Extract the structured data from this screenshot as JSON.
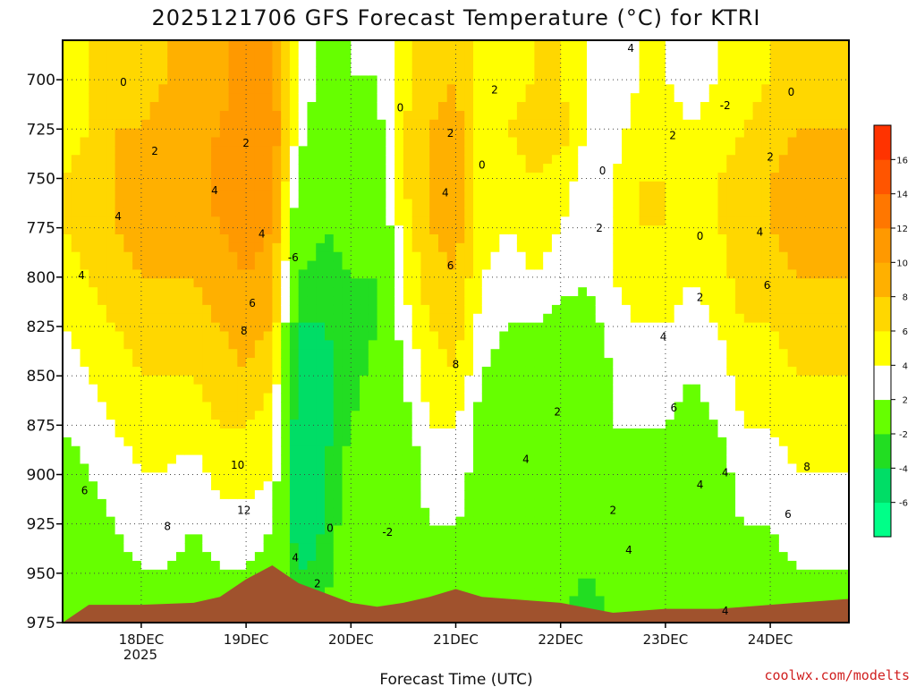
{
  "chart_data": {
    "type": "heatmap",
    "title": "2025121706 GFS Forecast Temperature (°C) for KTRI",
    "xlabel": "Forecast Time (UTC)",
    "ylabel": "",
    "credit": "coolwx.com/modelts",
    "y_axis": {
      "ticks": [
        700,
        725,
        750,
        775,
        800,
        825,
        850,
        875,
        900,
        925,
        950,
        975
      ],
      "range": [
        975,
        680
      ]
    },
    "x_axis": {
      "ticks": [
        "18DEC",
        "19DEC",
        "20DEC",
        "21DEC",
        "22DEC",
        "23DEC",
        "24DEC"
      ],
      "year_label": "2025",
      "range_days": [
        17.25,
        24.75
      ]
    },
    "colorbar": {
      "levels": [
        -8,
        -6,
        -4,
        -2,
        2,
        4,
        6,
        8,
        10,
        12,
        14,
        16,
        18
      ],
      "tick_labels": [
        "-6",
        "-4",
        "-2",
        "2",
        "4",
        "6",
        "8",
        "10",
        "12",
        "14",
        "16"
      ],
      "colors": [
        "#00ff88",
        "#00dd66",
        "#22dd22",
        "#66ff00",
        "#ffffff",
        "#ffff00",
        "#ffd700",
        "#ffb000",
        "#ff9900",
        "#ff7700",
        "#ff5500",
        "#ff3300"
      ]
    },
    "columns": [
      {
        "t": 17.25,
        "z": [
          4,
          5,
          6,
          6,
          5,
          4,
          3,
          2,
          1,
          0,
          -1,
          -1
        ]
      },
      {
        "t": 17.5,
        "z": [
          6,
          6,
          7,
          7,
          6,
          5,
          4,
          3,
          2,
          1,
          0,
          0
        ]
      },
      {
        "t": 17.75,
        "z": [
          7,
          8,
          8,
          8,
          7,
          6,
          5,
          4,
          3,
          2,
          1,
          0
        ]
      },
      {
        "t": 18.0,
        "z": [
          7,
          8,
          9,
          9,
          8,
          7,
          6,
          5,
          4,
          3,
          2,
          1
        ]
      },
      {
        "t": 18.25,
        "z": [
          8,
          9,
          9,
          9,
          8,
          7,
          6,
          5,
          4,
          3,
          2,
          1
        ]
      },
      {
        "t": 18.5,
        "z": [
          8,
          9,
          9,
          9,
          8,
          7,
          6,
          5,
          3,
          2,
          1,
          0
        ]
      },
      {
        "t": 18.75,
        "z": [
          9,
          10,
          11,
          10,
          9,
          8,
          7,
          6,
          5,
          3,
          2,
          1
        ]
      },
      {
        "t": 19.0,
        "z": [
          11,
          12,
          12,
          11,
          10,
          9,
          8,
          6,
          5,
          3,
          2,
          1
        ]
      },
      {
        "t": 19.25,
        "z": [
          10,
          12,
          11,
          10,
          9,
          8,
          6,
          5,
          4,
          2,
          1,
          0
        ]
      },
      {
        "t": 19.5,
        "z": [
          4,
          3,
          1,
          0,
          -2,
          -4,
          -5,
          -6,
          -6,
          -6,
          -4,
          -2
        ]
      },
      {
        "t": 19.75,
        "z": [
          1,
          0,
          -1,
          -2,
          -3,
          -4,
          -5,
          -5,
          -4,
          -4,
          -3,
          -1
        ]
      },
      {
        "t": 20.0,
        "z": [
          2,
          1,
          0,
          -1,
          -2,
          -3,
          -3,
          -2,
          -1,
          0,
          0,
          0
        ]
      },
      {
        "t": 20.25,
        "z": [
          2,
          1,
          0,
          -1,
          -2,
          -2,
          -1,
          0,
          0,
          0,
          0,
          0
        ]
      },
      {
        "t": 20.5,
        "z": [
          5,
          6,
          6,
          5,
          4,
          3,
          2,
          1,
          0,
          0,
          0,
          0
        ]
      },
      {
        "t": 20.75,
        "z": [
          7,
          8,
          8,
          8,
          7,
          6,
          5,
          4,
          3,
          2,
          1,
          0
        ]
      },
      {
        "t": 21.0,
        "z": [
          8,
          9,
          9,
          9,
          8,
          7,
          6,
          4,
          3,
          2,
          1,
          1
        ]
      },
      {
        "t": 21.25,
        "z": [
          5,
          5,
          5,
          5,
          4,
          3,
          2,
          1,
          1,
          1,
          1,
          1
        ]
      },
      {
        "t": 21.5,
        "z": [
          5,
          6,
          5,
          4,
          3,
          2,
          1,
          1,
          1,
          0,
          0,
          -1
        ]
      },
      {
        "t": 21.75,
        "z": [
          6,
          7,
          6,
          5,
          4,
          2,
          1,
          1,
          0,
          0,
          -1,
          -1
        ]
      },
      {
        "t": 22.0,
        "z": [
          6,
          7,
          5,
          4,
          3,
          1,
          0,
          0,
          0,
          -1,
          -1,
          -2
        ]
      },
      {
        "t": 22.25,
        "z": [
          4,
          4,
          3,
          3,
          2,
          1,
          0,
          -1,
          -1,
          -2,
          -2,
          -3
        ]
      },
      {
        "t": 22.5,
        "z": [
          3,
          3,
          4,
          4,
          4,
          3,
          2,
          2,
          1,
          0,
          -1,
          -2
        ]
      },
      {
        "t": 22.75,
        "z": [
          4,
          5,
          6,
          6,
          5,
          4,
          3,
          2,
          1,
          0,
          -1,
          -2
        ]
      },
      {
        "t": 23.0,
        "z": [
          4,
          5,
          6,
          6,
          5,
          4,
          3,
          2,
          1,
          0,
          -1,
          -1
        ]
      },
      {
        "t": 23.25,
        "z": [
          3,
          4,
          4,
          4,
          4,
          3,
          2,
          1,
          1,
          0,
          -1,
          -1
        ]
      },
      {
        "t": 23.5,
        "z": [
          4,
          5,
          6,
          6,
          5,
          4,
          3,
          2,
          1,
          1,
          0,
          0
        ]
      },
      {
        "t": 23.75,
        "z": [
          5,
          6,
          7,
          7,
          7,
          6,
          5,
          4,
          3,
          2,
          1,
          0
        ]
      },
      {
        "t": 24.0,
        "z": [
          6,
          7,
          8,
          8,
          7,
          6,
          5,
          4,
          3,
          2,
          1,
          0
        ]
      },
      {
        "t": 24.25,
        "z": [
          7,
          8,
          9,
          9,
          8,
          7,
          6,
          5,
          4,
          3,
          2,
          1
        ]
      },
      {
        "t": 24.5,
        "z": [
          7,
          8,
          9,
          9,
          8,
          7,
          6,
          5,
          4,
          3,
          2,
          1
        ]
      },
      {
        "t": 24.75,
        "z": [
          7,
          8,
          9,
          8,
          8,
          7,
          6,
          5,
          4,
          3,
          2,
          1
        ]
      }
    ],
    "terrain": {
      "color": "#a0522d",
      "t": [
        17.25,
        17.5,
        17.75,
        18.0,
        18.5,
        18.75,
        19.0,
        19.25,
        19.5,
        19.75,
        20.0,
        20.25,
        20.5,
        20.75,
        21.0,
        21.25,
        21.5,
        22.0,
        22.5,
        23.0,
        23.5,
        24.0,
        24.5,
        24.75
      ],
      "pressure": [
        975,
        966,
        966,
        966,
        965,
        962,
        953,
        946,
        955,
        960,
        965,
        967,
        965,
        962,
        958,
        962,
        963,
        965,
        970,
        968,
        968,
        966,
        964,
        963
      ]
    },
    "contour_labels": [
      {
        "text": "0",
        "t": 17.83,
        "p": 703
      },
      {
        "text": "2",
        "t": 18.13,
        "p": 738
      },
      {
        "text": "4",
        "t": 17.78,
        "p": 771
      },
      {
        "text": "4",
        "t": 17.43,
        "p": 801
      },
      {
        "text": "4",
        "t": 18.7,
        "p": 758
      },
      {
        "text": "2",
        "t": 19.0,
        "p": 734
      },
      {
        "text": "4",
        "t": 19.15,
        "p": 780
      },
      {
        "text": "6",
        "t": 19.06,
        "p": 815
      },
      {
        "text": "8",
        "t": 18.98,
        "p": 829
      },
      {
        "text": "6",
        "t": 17.46,
        "p": 910
      },
      {
        "text": "8",
        "t": 18.25,
        "p": 928
      },
      {
        "text": "10",
        "t": 18.92,
        "p": 897
      },
      {
        "text": "12",
        "t": 18.98,
        "p": 920
      },
      {
        "text": "-6",
        "t": 19.45,
        "p": 792
      },
      {
        "text": "0",
        "t": 19.8,
        "p": 929
      },
      {
        "text": "-2",
        "t": 20.35,
        "p": 931
      },
      {
        "text": "4",
        "t": 19.47,
        "p": 944
      },
      {
        "text": "2",
        "t": 19.68,
        "p": 957
      },
      {
        "text": "0",
        "t": 20.47,
        "p": 716
      },
      {
        "text": "2",
        "t": 20.95,
        "p": 729
      },
      {
        "text": "0",
        "t": 21.25,
        "p": 745
      },
      {
        "text": "2",
        "t": 21.37,
        "p": 707
      },
      {
        "text": "4",
        "t": 20.9,
        "p": 759
      },
      {
        "text": "6",
        "t": 20.95,
        "p": 796
      },
      {
        "text": "8",
        "t": 21.0,
        "p": 846
      },
      {
        "text": "4",
        "t": 21.67,
        "p": 894
      },
      {
        "text": "2",
        "t": 21.97,
        "p": 870
      },
      {
        "text": "4",
        "t": 22.67,
        "p": 686
      },
      {
        "text": "2",
        "t": 23.07,
        "p": 730
      },
      {
        "text": "0",
        "t": 22.4,
        "p": 748
      },
      {
        "text": "-2",
        "t": 23.57,
        "p": 715
      },
      {
        "text": "2",
        "t": 22.37,
        "p": 777
      },
      {
        "text": "0",
        "t": 23.33,
        "p": 781
      },
      {
        "text": "0",
        "t": 24.2,
        "p": 708
      },
      {
        "text": "2",
        "t": 23.33,
        "p": 812
      },
      {
        "text": "4",
        "t": 22.98,
        "p": 832
      },
      {
        "text": "6",
        "t": 23.08,
        "p": 868
      },
      {
        "text": "4",
        "t": 23.57,
        "p": 901
      },
      {
        "text": "4",
        "t": 23.33,
        "p": 907
      },
      {
        "text": "2",
        "t": 22.5,
        "p": 920
      },
      {
        "text": "4",
        "t": 22.65,
        "p": 940
      },
      {
        "text": "2",
        "t": 24.0,
        "p": 741
      },
      {
        "text": "4",
        "t": 23.9,
        "p": 779
      },
      {
        "text": "6",
        "t": 23.97,
        "p": 806
      },
      {
        "text": "8",
        "t": 24.35,
        "p": 898
      },
      {
        "text": "6",
        "t": 24.17,
        "p": 922
      },
      {
        "text": "4",
        "t": 23.57,
        "p": 971
      }
    ]
  }
}
